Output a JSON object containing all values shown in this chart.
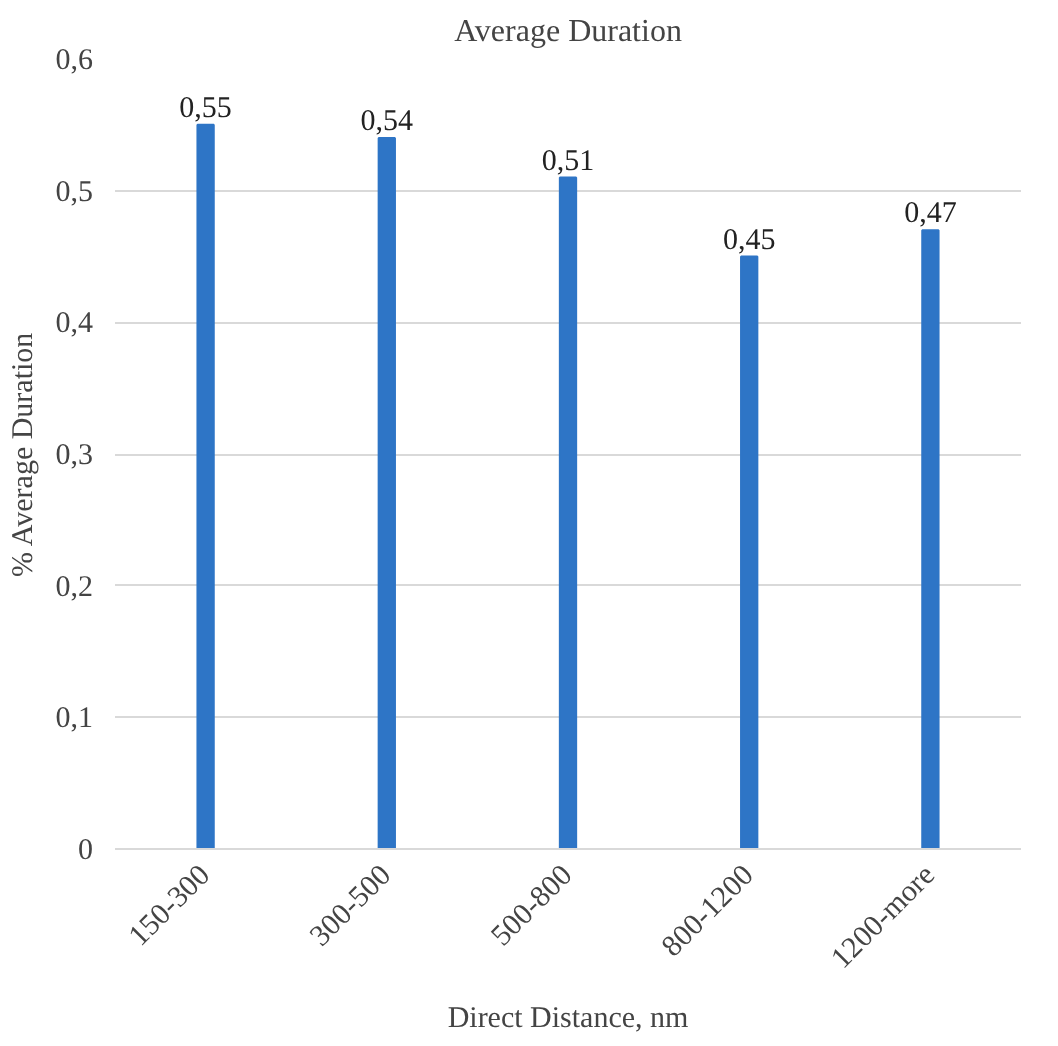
{
  "chart_data": {
    "type": "bar",
    "title": "Average Duration",
    "xlabel": "Direct Distance, nm",
    "ylabel": "% Average Duration",
    "categories": [
      "150-300",
      "300-500",
      "500-800",
      "800-1200",
      "1200-more"
    ],
    "values": [
      0.55,
      0.54,
      0.51,
      0.45,
      0.47
    ],
    "value_labels": [
      "0,55",
      "0,54",
      "0,51",
      "0,45",
      "0,47"
    ],
    "color": "#2e75c6",
    "ylim": [
      0,
      0.6
    ],
    "yticks": [
      0,
      {
        "value": 0.1,
        "label": "0,1"
      },
      {
        "value": 0.2,
        "label": "0,2"
      },
      {
        "value": 0.3,
        "label": "0,3"
      },
      {
        "value": 0.4,
        "label": "0,4"
      },
      {
        "value": 0.5,
        "label": "0,5"
      },
      {
        "value": 0.6,
        "label": "0,6"
      }
    ],
    "grid": "y"
  }
}
